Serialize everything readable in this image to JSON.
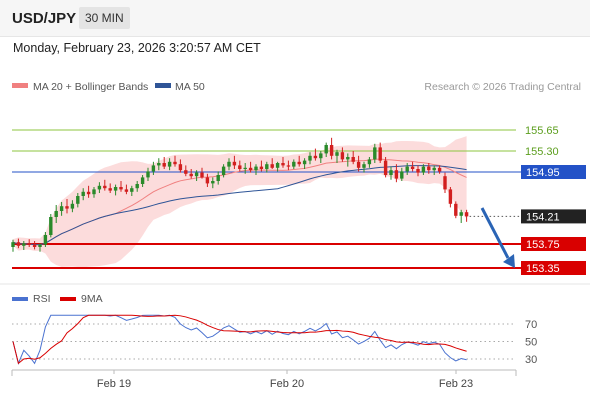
{
  "header": {
    "symbol": "USD/JPY",
    "timeframe": "30 MIN",
    "datetime": "Monday, February 23, 2026 3:20:57 AM CET"
  },
  "legend": {
    "ma20_bb": "MA 20 + Bollinger Bands",
    "ma50": "MA 50",
    "credit": "Research © 2026 Trading Central"
  },
  "colors": {
    "up": "#2a8a2a",
    "down": "#d21f1f",
    "ma20": "#f08080",
    "ma50": "#2f5597",
    "band": "#fbd0d0",
    "resistance": "#8cc63f",
    "pivot": "#2352c7",
    "support": "#d90000",
    "rsi": "#4a72d0",
    "rsi_ma": "#d90000",
    "arrow": "#2a64b5"
  },
  "chart_data": [
    {
      "type": "candlestick",
      "title": "",
      "xlabel": "",
      "ylabel": "",
      "x_ticks": [
        "Feb 19",
        "Feb 20",
        "Feb 23"
      ],
      "ylim": [
        153.35,
        155.65
      ],
      "levels": [
        {
          "value": 155.65,
          "label": "155.65",
          "kind": "resistance"
        },
        {
          "value": 155.3,
          "label": "155.30",
          "kind": "resistance"
        },
        {
          "value": 154.95,
          "label": "154.95",
          "kind": "pivot"
        },
        {
          "value": 153.75,
          "label": "153.75",
          "kind": "support"
        },
        {
          "value": 153.35,
          "label": "153.35",
          "kind": "support"
        }
      ],
      "last_price": {
        "value": 154.21,
        "label": "154.21"
      },
      "ohlc": [
        [
          153.7,
          153.82,
          153.62,
          153.78
        ],
        [
          153.78,
          153.84,
          153.68,
          153.72
        ],
        [
          153.72,
          153.8,
          153.65,
          153.76
        ],
        [
          153.76,
          153.83,
          153.7,
          153.74
        ],
        [
          153.74,
          153.8,
          153.66,
          153.7
        ],
        [
          153.7,
          153.76,
          153.62,
          153.74
        ],
        [
          153.74,
          153.95,
          153.7,
          153.9
        ],
        [
          153.9,
          154.25,
          153.86,
          154.2
        ],
        [
          154.2,
          154.4,
          154.1,
          154.3
        ],
        [
          154.3,
          154.45,
          154.22,
          154.38
        ],
        [
          154.38,
          154.5,
          154.26,
          154.34
        ],
        [
          154.34,
          154.48,
          154.28,
          154.42
        ],
        [
          154.42,
          154.6,
          154.36,
          154.55
        ],
        [
          154.55,
          154.68,
          154.48,
          154.62
        ],
        [
          154.62,
          154.72,
          154.52,
          154.58
        ],
        [
          154.58,
          154.7,
          154.52,
          154.66
        ],
        [
          154.66,
          154.78,
          154.6,
          154.72
        ],
        [
          154.72,
          154.82,
          154.64,
          154.68
        ],
        [
          154.68,
          154.76,
          154.6,
          154.64
        ],
        [
          154.64,
          154.74,
          154.56,
          154.7
        ],
        [
          154.7,
          154.8,
          154.62,
          154.66
        ],
        [
          154.66,
          154.74,
          154.58,
          154.62
        ],
        [
          154.62,
          154.72,
          154.55,
          154.68
        ],
        [
          154.68,
          154.8,
          154.62,
          154.75
        ],
        [
          154.75,
          154.9,
          154.7,
          154.86
        ],
        [
          154.86,
          155.02,
          154.8,
          154.96
        ],
        [
          154.96,
          155.12,
          154.9,
          155.06
        ],
        [
          155.06,
          155.18,
          154.98,
          155.1
        ],
        [
          155.1,
          155.2,
          155.0,
          155.04
        ],
        [
          155.04,
          155.18,
          154.98,
          155.12
        ],
        [
          155.12,
          155.22,
          155.04,
          155.08
        ],
        [
          155.08,
          155.16,
          154.94,
          154.98
        ],
        [
          154.98,
          155.06,
          154.88,
          154.92
        ],
        [
          154.92,
          155.0,
          154.84,
          154.88
        ],
        [
          154.88,
          154.98,
          154.8,
          154.94
        ],
        [
          154.94,
          155.02,
          154.84,
          154.86
        ],
        [
          154.86,
          154.92,
          154.7,
          154.76
        ],
        [
          154.76,
          154.86,
          154.68,
          154.8
        ],
        [
          154.8,
          154.96,
          154.74,
          154.9
        ],
        [
          154.9,
          155.08,
          154.86,
          155.04
        ],
        [
          155.04,
          155.18,
          154.98,
          155.12
        ],
        [
          155.12,
          155.22,
          155.0,
          155.06
        ],
        [
          155.06,
          155.14,
          154.96,
          155.0
        ],
        [
          155.0,
          155.1,
          154.92,
          155.02
        ],
        [
          155.02,
          155.12,
          154.94,
          154.98
        ],
        [
          154.98,
          155.08,
          154.9,
          155.04
        ],
        [
          155.04,
          155.14,
          154.96,
          155.0
        ],
        [
          155.0,
          155.12,
          154.94,
          155.08
        ],
        [
          155.08,
          155.18,
          155.0,
          155.02
        ],
        [
          155.02,
          155.12,
          154.96,
          155.1
        ],
        [
          155.1,
          155.2,
          155.02,
          155.06
        ],
        [
          155.06,
          155.14,
          154.98,
          155.04
        ],
        [
          155.04,
          155.16,
          155.0,
          155.12
        ],
        [
          155.12,
          155.22,
          155.04,
          155.08
        ],
        [
          155.08,
          155.18,
          155.0,
          155.14
        ],
        [
          155.14,
          155.28,
          155.08,
          155.22
        ],
        [
          155.22,
          155.34,
          155.14,
          155.18
        ],
        [
          155.18,
          155.3,
          155.1,
          155.26
        ],
        [
          155.26,
          155.44,
          155.2,
          155.4
        ],
        [
          155.4,
          155.52,
          155.16,
          155.22
        ],
        [
          155.22,
          155.32,
          155.1,
          155.28
        ],
        [
          155.28,
          155.36,
          155.12,
          155.16
        ],
        [
          155.16,
          155.26,
          155.04,
          155.2
        ],
        [
          155.2,
          155.3,
          155.08,
          155.12
        ],
        [
          155.12,
          155.22,
          154.96,
          155.02
        ],
        [
          155.02,
          155.12,
          154.94,
          155.08
        ],
        [
          155.08,
          155.2,
          155.02,
          155.16
        ],
        [
          155.16,
          155.42,
          155.1,
          155.36
        ],
        [
          155.36,
          155.44,
          155.1,
          155.14
        ],
        [
          155.14,
          155.2,
          154.86,
          154.9
        ],
        [
          154.9,
          155.04,
          154.82,
          154.98
        ],
        [
          154.98,
          155.08,
          154.78,
          154.84
        ],
        [
          154.84,
          155.02,
          154.8,
          154.96
        ],
        [
          154.96,
          155.1,
          154.9,
          155.04
        ],
        [
          155.04,
          155.12,
          154.96,
          155.0
        ],
        [
          155.0,
          155.06,
          154.88,
          154.94
        ],
        [
          154.94,
          155.08,
          154.9,
          155.04
        ],
        [
          155.04,
          155.1,
          154.92,
          154.98
        ],
        [
          154.98,
          155.06,
          154.9,
          155.02
        ],
        [
          155.02,
          155.06,
          154.92,
          154.96
        ],
        [
          154.88,
          154.94,
          154.6,
          154.66
        ],
        [
          154.66,
          154.7,
          154.36,
          154.42
        ],
        [
          154.42,
          154.46,
          154.18,
          154.22
        ],
        [
          154.22,
          154.32,
          154.1,
          154.28
        ],
        [
          154.28,
          154.32,
          154.12,
          154.21
        ]
      ]
    },
    {
      "type": "line",
      "title": "",
      "series_labels": {
        "rsi": "RSI",
        "ma": "9MA"
      },
      "ylim": [
        25,
        80
      ],
      "levels": [
        {
          "value": 70,
          "label": "70"
        },
        {
          "value": 50,
          "label": "50"
        },
        {
          "value": 30,
          "label": "30"
        }
      ]
    }
  ]
}
